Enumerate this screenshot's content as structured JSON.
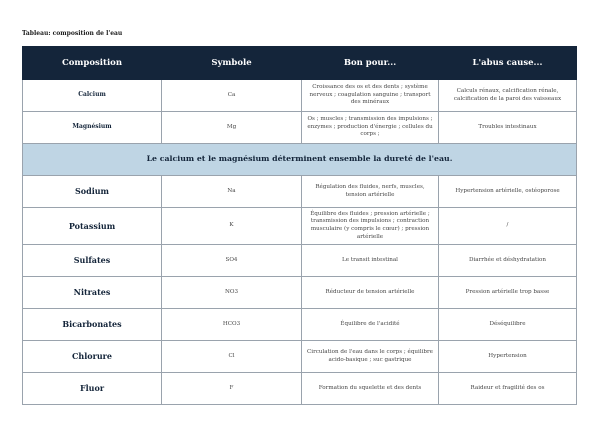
{
  "title": "Tableau: composition de l'eau",
  "headers": [
    "Composition",
    "Symbole",
    "Bon pour...",
    "L'abus cause..."
  ],
  "rows_top": [
    {
      "name": "Calcium",
      "symbol": "Ca",
      "good": "Croissance des os et des dents ; système nerveux ; coagulation sanguine ; transport des minéraux",
      "abuse": "Calculs rénaux, calcification rénale, calcification de la paroi des vaisseaux"
    },
    {
      "name": "Magnésium",
      "symbol": "Mg",
      "good": "Os ; muscles ; transmission des impulsions ; enzymes ; production d'énergie ; cellules du corps ;",
      "abuse": "Troubles intestinaux"
    }
  ],
  "banner": "Le calcium et le magnésium déterminent ensemble la dureté de l'eau.",
  "rows": [
    {
      "name": "Sodium",
      "symbol": "Na",
      "good": "Régulation des fluides, nerfs, muscles, tension artérielle",
      "abuse": "Hypertension artérielle, ostéoporose"
    },
    {
      "name": "Potassium",
      "symbol": "K",
      "good": "Équilibre des fluides ; pression artérielle ; transmission des impulsions ; contraction musculaire (y compris le cœur) ; pression artérielle",
      "abuse": "/"
    },
    {
      "name": "Sulfates",
      "symbol": "SO4",
      "good": "Le transit intestinal",
      "abuse": "Diarrhée et déshydratation"
    },
    {
      "name": "Nitrates",
      "symbol": "NO3",
      "good": "Réducteur de tension artérielle",
      "abuse": "Pression artérielle trop basse"
    },
    {
      "name": "Bicarbonates",
      "symbol": "HCO3",
      "good": "Équilibre de l'acidité",
      "abuse": "Déséquilibre"
    },
    {
      "name": "Chlorure",
      "symbol": "Cl",
      "good": "Circulation de l'eau dans le corps ; équilibre acido-basique ; suc gastrique",
      "abuse": "Hypertension"
    },
    {
      "name": "Fluor",
      "symbol": "F",
      "good": "Formation du squelette et des dents",
      "abuse": "Raideur et fragilité des os"
    }
  ],
  "colors": {
    "header_bg": "#14253a",
    "banner_bg": "#bfd5e4",
    "border": "#9aa3ad"
  }
}
